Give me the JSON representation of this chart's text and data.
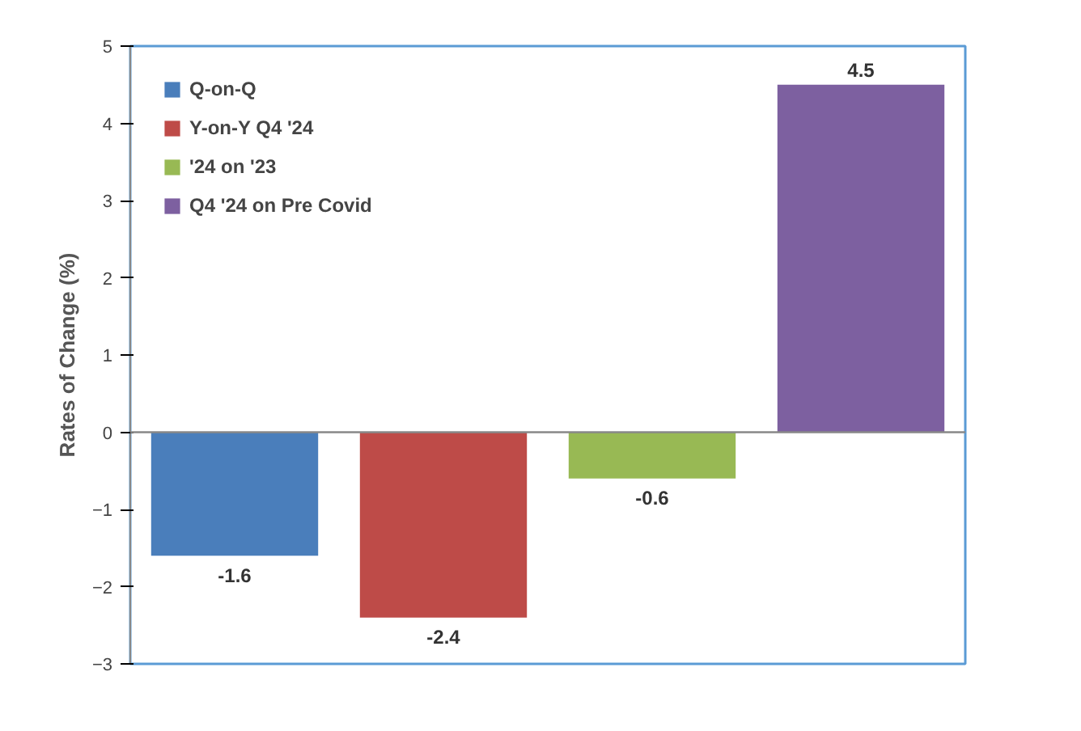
{
  "chart_data": {
    "type": "bar",
    "ylabel": "Rates of Change (%)",
    "categories": [
      null,
      null,
      null,
      null
    ],
    "series": [
      {
        "name": "Q-on-Q",
        "color": "#4a7ebb",
        "values": [
          -1.6,
          null,
          null,
          null
        ]
      },
      {
        "name": "Y-on-Y Q4 '24",
        "color": "#be4b48",
        "values": [
          null,
          -2.4,
          null,
          null
        ]
      },
      {
        "name": "'24 on '23",
        "color": "#98b954",
        "values": [
          null,
          null,
          -0.6,
          null
        ]
      },
      {
        "name": "Q4 '24 on Pre Covid",
        "color": "#7d60a0",
        "values": [
          null,
          null,
          null,
          4.5
        ]
      }
    ],
    "ylim": [
      -3,
      5
    ],
    "yticks": [
      -3,
      -2,
      -1,
      0,
      1,
      2,
      3,
      4,
      5
    ],
    "data_labels": true,
    "legend": "top left",
    "grid": false,
    "ref_lines": [
      {
        "axis": "y",
        "value": 0,
        "color": "#888888"
      }
    ]
  }
}
